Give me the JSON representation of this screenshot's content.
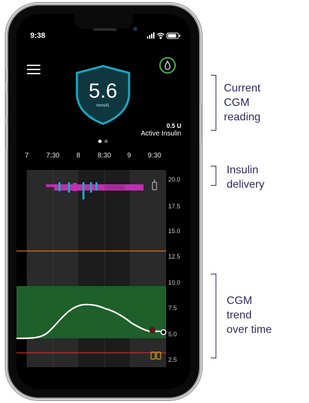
{
  "status": {
    "time": "9:38"
  },
  "cgm": {
    "value": "5.6",
    "unit": "mmol/L"
  },
  "insulin": {
    "value": "0.5 U",
    "label": "Active Insulin"
  },
  "timeline": {
    "labels": [
      "7",
      "7:30",
      "8",
      "8:30",
      "9",
      "9:30"
    ]
  },
  "y_axis": {
    "labels": [
      "20.0",
      "17.5",
      "15.0",
      "12.5",
      "10.0",
      "7.5",
      "5.0",
      "2.5"
    ]
  },
  "annotations": {
    "cgm_reading": [
      "Current",
      "CGM",
      "reading"
    ],
    "insulin_delivery": [
      "Insulin",
      "delivery"
    ],
    "cgm_trend": [
      "CGM",
      "trend",
      "over time"
    ]
  },
  "colors": {
    "shield": "#1aa8c4",
    "target_range": "#1f5f2a",
    "high_line": "#e8731a",
    "low_line": "#d62828",
    "insulin_bar": "#c02fb0",
    "bolus": "#1aa8c4",
    "annotation": "#2c2a5e"
  },
  "icons": [
    "menu-icon",
    "insulin-drop-icon",
    "cartridge-icon",
    "battery-icon",
    "signal-icon",
    "wifi-icon"
  ]
}
